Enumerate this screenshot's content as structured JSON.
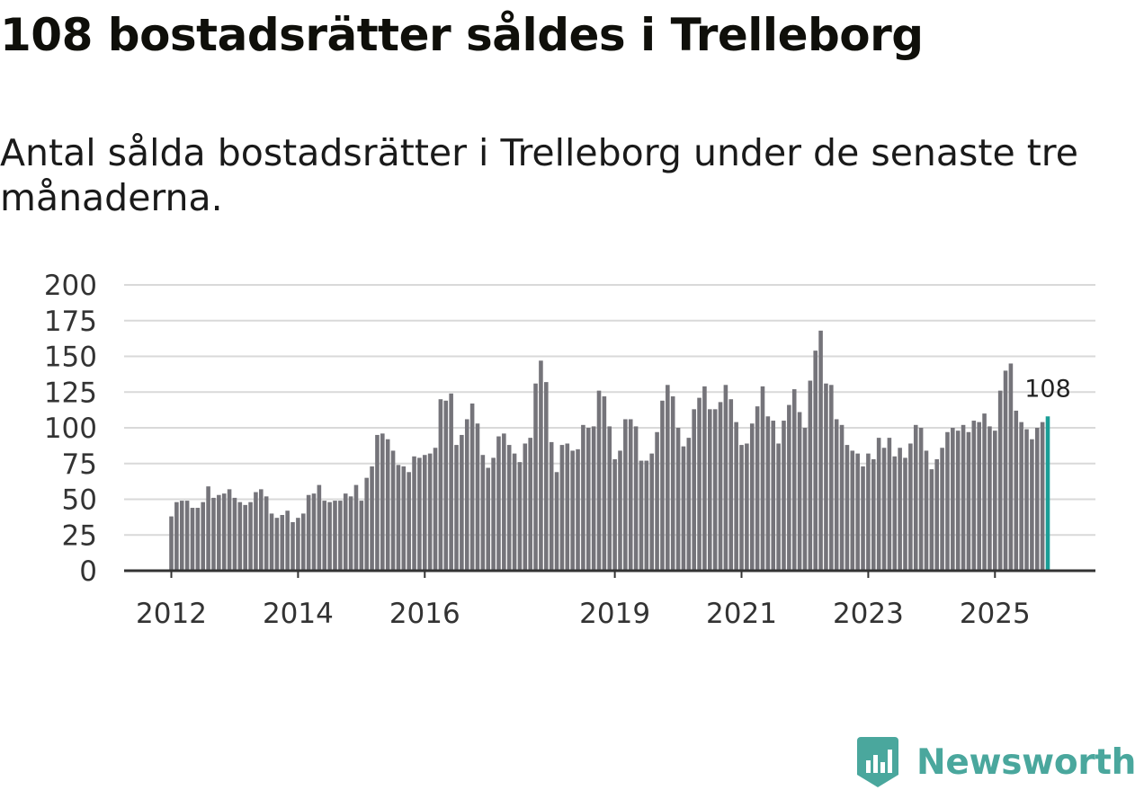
{
  "title": "108 bostadsrätter såldes i Trelleborg",
  "subtitle": "Antal sålda bostadsrätter i Trelleborg under de senaste tre månaderna.",
  "brand": {
    "name": "Newsworthy",
    "color": "#4aa79d",
    "icon": "newsworthy-logo-icon"
  },
  "colors": {
    "bar": "#75747a",
    "highlight": "#1a9e96",
    "grid": "#d9d9d9",
    "axis": "#333333"
  },
  "chart_data": {
    "type": "bar",
    "title": "108 bostadsrätter såldes i Trelleborg",
    "subtitle": "Antal sålda bostadsrätter i Trelleborg under de senaste tre månaderna.",
    "xlabel": "",
    "ylabel": "",
    "ylim": [
      0,
      200
    ],
    "yticks": [
      0,
      25,
      50,
      75,
      100,
      125,
      150,
      175,
      200
    ],
    "xticks": [
      {
        "label": "2012",
        "index": 0
      },
      {
        "label": "2014",
        "index": 24
      },
      {
        "label": "2016",
        "index": 48
      },
      {
        "label": "2019",
        "index": 84
      },
      {
        "label": "2021",
        "index": 108
      },
      {
        "label": "2023",
        "index": 132
      },
      {
        "label": "2025",
        "index": 156
      }
    ],
    "grid": true,
    "highlight_last": true,
    "last_label": "108",
    "values": [
      38,
      48,
      49,
      49,
      44,
      44,
      48,
      59,
      51,
      53,
      54,
      57,
      51,
      48,
      46,
      48,
      55,
      57,
      52,
      40,
      37,
      39,
      42,
      34,
      37,
      40,
      53,
      54,
      60,
      49,
      48,
      49,
      49,
      54,
      52,
      60,
      49,
      65,
      73,
      95,
      96,
      92,
      84,
      74,
      73,
      69,
      80,
      79,
      81,
      82,
      86,
      120,
      119,
      124,
      88,
      95,
      106,
      117,
      103,
      81,
      72,
      79,
      94,
      96,
      88,
      82,
      76,
      89,
      93,
      131,
      147,
      132,
      90,
      69,
      88,
      89,
      84,
      85,
      102,
      100,
      101,
      126,
      122,
      101,
      78,
      84,
      106,
      106,
      101,
      77,
      77,
      82,
      97,
      119,
      130,
      122,
      100,
      87,
      93,
      113,
      121,
      129,
      113,
      113,
      118,
      130,
      120,
      104,
      88,
      89,
      103,
      115,
      129,
      108,
      105,
      89,
      105,
      116,
      127,
      111,
      100,
      133,
      154,
      168,
      131,
      130,
      106,
      102,
      88,
      84,
      82,
      73,
      82,
      78,
      93,
      86,
      93,
      80,
      86,
      79,
      89,
      102,
      100,
      84,
      71,
      78,
      86,
      97,
      100,
      98,
      102,
      97,
      105,
      104,
      110,
      101,
      98,
      126,
      140,
      145,
      112,
      104,
      99,
      92,
      100,
      104,
      108
    ]
  }
}
